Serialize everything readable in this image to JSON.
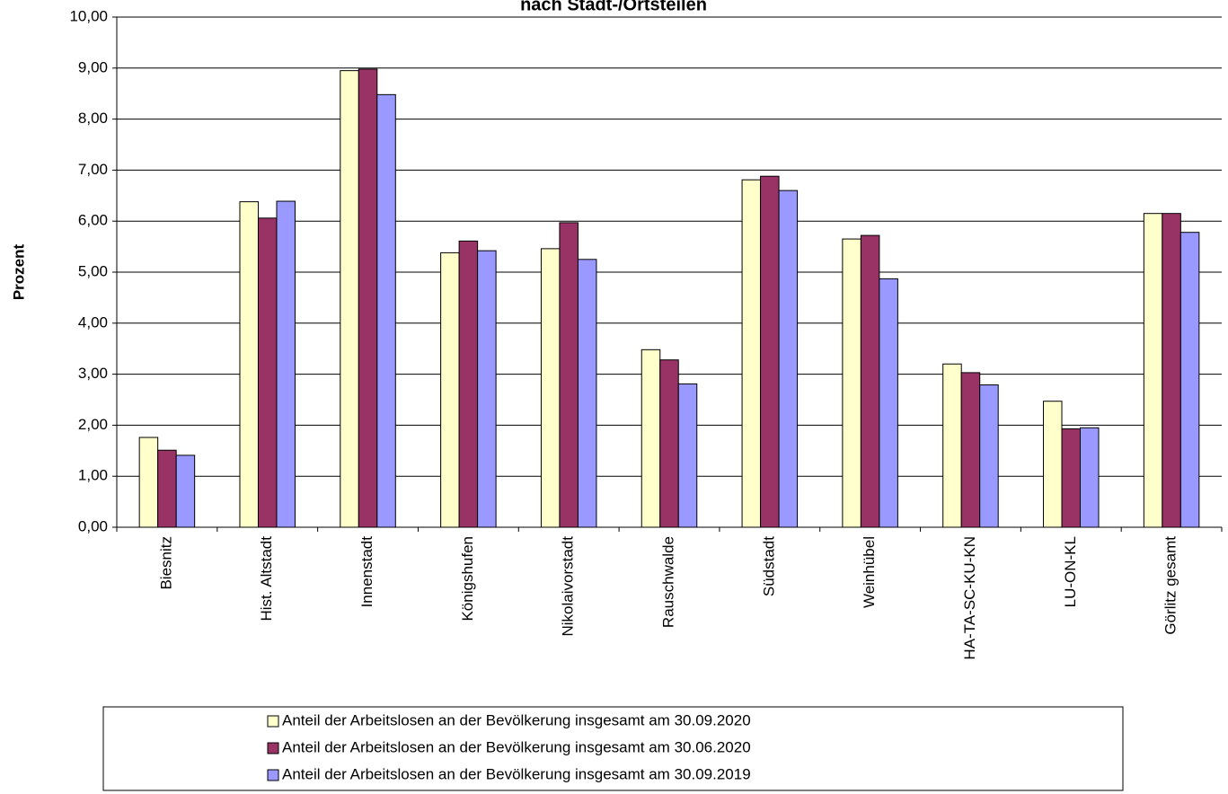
{
  "chart_data": {
    "type": "bar",
    "title": "nach Stadt-/Ortsteilen",
    "y_label": "Prozent",
    "categories": [
      "Biesnitz",
      "Hist. Altstadt",
      "Innenstadt",
      "Königshufen",
      "Nikolaivorstadt",
      "Rauschwalde",
      "Südstadt",
      "Weinhübel",
      "HA-TA-SC-KU-KN",
      "LU-ON-KL",
      "Görlitz gesamt"
    ],
    "series": [
      {
        "name": "Anteil der Arbeitslosen an der Bevölkerung insgesamt am 30.09.2020",
        "color": "#ffffcc",
        "values": [
          1.76,
          6.38,
          8.95,
          5.38,
          5.46,
          3.48,
          6.81,
          5.65,
          3.2,
          2.47,
          6.15
        ]
      },
      {
        "name": "Anteil der Arbeitslosen an der Bevölkerung insgesamt am 30.06.2020",
        "color": "#993366",
        "values": [
          1.51,
          6.06,
          8.98,
          5.61,
          5.97,
          3.28,
          6.88,
          5.72,
          3.03,
          1.93,
          6.15
        ]
      },
      {
        "name": "Anteil der Arbeitslosen an der Bevölkerung insgesamt am 30.09.2019",
        "color": "#9999ff",
        "values": [
          1.41,
          6.39,
          8.48,
          5.42,
          5.25,
          2.81,
          6.6,
          4.87,
          2.79,
          1.95,
          5.78
        ]
      }
    ],
    "ylim": [
      0,
      10
    ],
    "yticks": [
      {
        "value": 0,
        "label": "0,00"
      },
      {
        "value": 1,
        "label": "1,00"
      },
      {
        "value": 2,
        "label": "2,00"
      },
      {
        "value": 3,
        "label": "3,00"
      },
      {
        "value": 4,
        "label": "4,00"
      },
      {
        "value": 5,
        "label": "5,00"
      },
      {
        "value": 6,
        "label": "6,00"
      },
      {
        "value": 7,
        "label": "7,00"
      },
      {
        "value": 8,
        "label": "8,00"
      },
      {
        "value": 9,
        "label": "9,00"
      },
      {
        "value": 10,
        "label": "10,00"
      }
    ],
    "grid": true
  }
}
